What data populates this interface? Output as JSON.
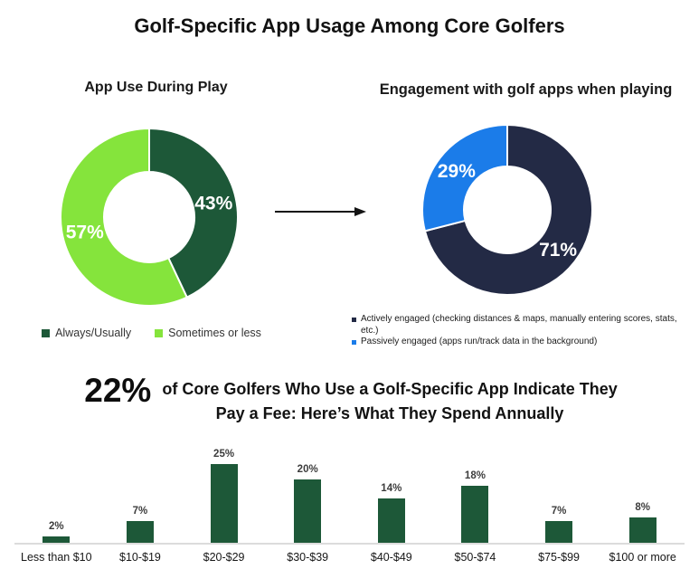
{
  "title": "Golf-Specific App Usage Among Core Golfers",
  "spend_section": {
    "stat": "22%",
    "line1": "of Core Golfers Who Use a Golf-Specific App Indicate They",
    "line2": "Pay a Fee: Here’s What They Spend Annually"
  },
  "colors": {
    "dark_green": "#1d5838",
    "light_green": "#85e43c",
    "navy": "#232a45",
    "blue": "#1b7ce9",
    "axis_line": "#dcdcdc",
    "value_label": "#3d3d3d"
  },
  "chart_data": [
    {
      "id": "donut-app-use",
      "type": "pie",
      "donut": true,
      "title": "App Use During Play",
      "label_color": "#ffffff",
      "legend_position": "bottom",
      "slices": [
        {
          "label": "Always/Usually",
          "value": 43,
          "display": "43%",
          "color": "#1d5838"
        },
        {
          "label": "Sometimes or less",
          "value": 57,
          "display": "57%",
          "color": "#85e43c"
        }
      ]
    },
    {
      "id": "donut-engagement",
      "type": "pie",
      "donut": true,
      "title": "Engagement with golf apps when playing",
      "label_color": "#ffffff",
      "legend_position": "bottom",
      "slices": [
        {
          "label": "Actively engaged (checking distances & maps, manually entering scores, stats, etc.)",
          "value": 71,
          "display": "71%",
          "color": "#232a45"
        },
        {
          "label": "Passively engaged (apps run/track data in the background)",
          "value": 29,
          "display": "29%",
          "color": "#1b7ce9"
        }
      ]
    },
    {
      "id": "annual-spend-bars",
      "type": "bar",
      "title": "22% of Core Golfers Who Use a Golf-Specific App Indicate They Pay a Fee: Here’s What They Spend Annually",
      "categories": [
        "Less than $10",
        "$10-$19",
        "$20-$29",
        "$30-$39",
        "$40-$49",
        "$50-$74",
        "$75-$99",
        "$100 or more"
      ],
      "values": [
        2,
        7,
        25,
        20,
        14,
        18,
        7,
        8
      ],
      "value_labels": [
        "2%",
        "7%",
        "25%",
        "20%",
        "14%",
        "18%",
        "7%",
        "8%"
      ],
      "bar_color": "#1d5838",
      "ylim": [
        0,
        25
      ],
      "grid": false,
      "ylabel": "",
      "xlabel": ""
    }
  ]
}
